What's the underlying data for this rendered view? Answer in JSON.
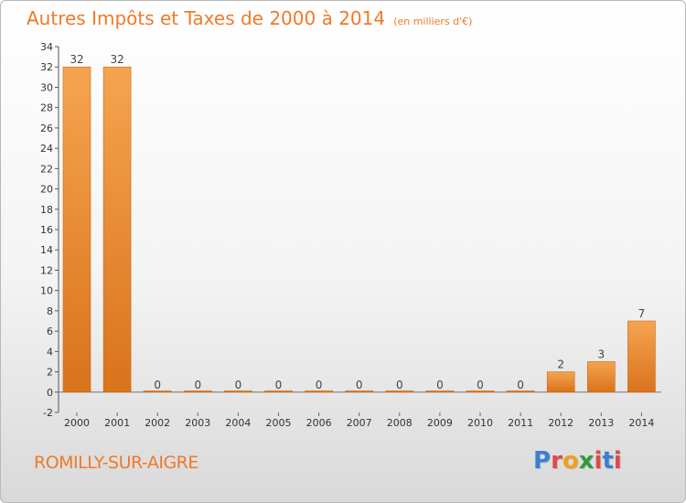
{
  "header": {
    "title": "Autres Impôts et Taxes de 2000 à 2014",
    "subtitle": "(en milliers d'€)"
  },
  "footer": {
    "commune": "ROMILLY-SUR-AIGRE",
    "logo_text": "Proxiti",
    "logo_colors": [
      "#3a7fd0",
      "#e0484a",
      "#f0a020",
      "#2f9a3f",
      "#e0484a",
      "#3a7fd0",
      "#e0484a"
    ]
  },
  "colors": {
    "bar_light": "#f6a450",
    "bar_dark": "#d9731c",
    "accent": "#ef7a2a"
  },
  "chart_data": {
    "type": "bar",
    "title": "Autres Impôts et Taxes de 2000 à 2014",
    "subtitle": "(en milliers d'€)",
    "categories": [
      "2000",
      "2001",
      "2002",
      "2003",
      "2004",
      "2005",
      "2006",
      "2007",
      "2008",
      "2009",
      "2010",
      "2011",
      "2012",
      "2013",
      "2014"
    ],
    "values": [
      32,
      32,
      0,
      0,
      0,
      0,
      0,
      0,
      0,
      0,
      0,
      0,
      2,
      3,
      7
    ],
    "data_labels": [
      "32",
      "32",
      "0",
      "0",
      "0",
      "0",
      "0",
      "0",
      "0",
      "0",
      "0",
      "0",
      "2",
      "3",
      "7"
    ],
    "ylim": [
      -2,
      34
    ],
    "yticks": [
      -2,
      0,
      2,
      4,
      6,
      8,
      10,
      12,
      14,
      16,
      18,
      20,
      22,
      24,
      26,
      28,
      30,
      32,
      34
    ],
    "xlabel": "",
    "ylabel": "",
    "grid": false,
    "legend": "none"
  }
}
